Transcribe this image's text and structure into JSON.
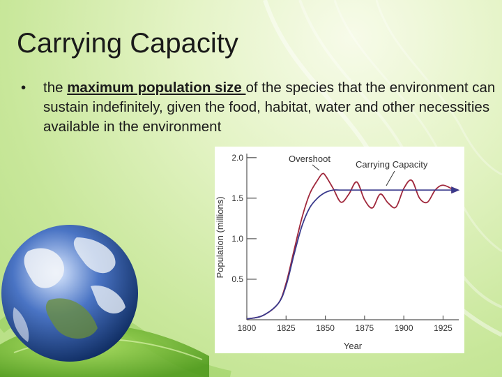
{
  "slide": {
    "title": "Carrying Capacity",
    "bullet_symbol": "•",
    "bullet_before": "the ",
    "bullet_emphasis": "maximum population size ",
    "bullet_after": "of the species that the environment can sustain indefinitely, given the food, habitat, water and other necessities available in the environment"
  },
  "colors": {
    "population_curve": "#a0283c",
    "capacity_curve": "#3a3a8c",
    "background": "#d6edaa"
  },
  "chart_data": {
    "type": "line",
    "ylabel": "Population (millions)",
    "xlabel": "Year",
    "x_ticks": [
      "1800",
      "1825",
      "1850",
      "1875",
      "1900",
      "1925"
    ],
    "y_ticks": [
      "0.5",
      "1.0",
      "1.5",
      "2.0"
    ],
    "xlim": [
      1800,
      1935
    ],
    "ylim": [
      0,
      2.05
    ],
    "annotations": [
      "Overshoot",
      "Carrying Capacity"
    ],
    "series": [
      {
        "key": "population",
        "x": [
          1800,
          1810,
          1820,
          1825,
          1830,
          1835,
          1840,
          1845,
          1848,
          1850,
          1855,
          1860,
          1865,
          1870,
          1875,
          1880,
          1885,
          1890,
          1895,
          1900,
          1905,
          1910,
          1915,
          1920,
          1925,
          1932
        ],
        "y": [
          0.01,
          0.05,
          0.2,
          0.45,
          0.85,
          1.25,
          1.55,
          1.72,
          1.8,
          1.78,
          1.62,
          1.45,
          1.55,
          1.7,
          1.48,
          1.38,
          1.55,
          1.44,
          1.39,
          1.62,
          1.72,
          1.5,
          1.45,
          1.6,
          1.66,
          1.6
        ]
      },
      {
        "key": "capacity",
        "x": [
          1800,
          1810,
          1820,
          1825,
          1830,
          1835,
          1840,
          1845,
          1850,
          1855,
          1860,
          1870,
          1880,
          1890,
          1900,
          1910,
          1920,
          1932
        ],
        "y": [
          0.01,
          0.05,
          0.2,
          0.42,
          0.8,
          1.15,
          1.38,
          1.5,
          1.57,
          1.6,
          1.6,
          1.6,
          1.6,
          1.6,
          1.6,
          1.6,
          1.6,
          1.6
        ]
      }
    ]
  }
}
